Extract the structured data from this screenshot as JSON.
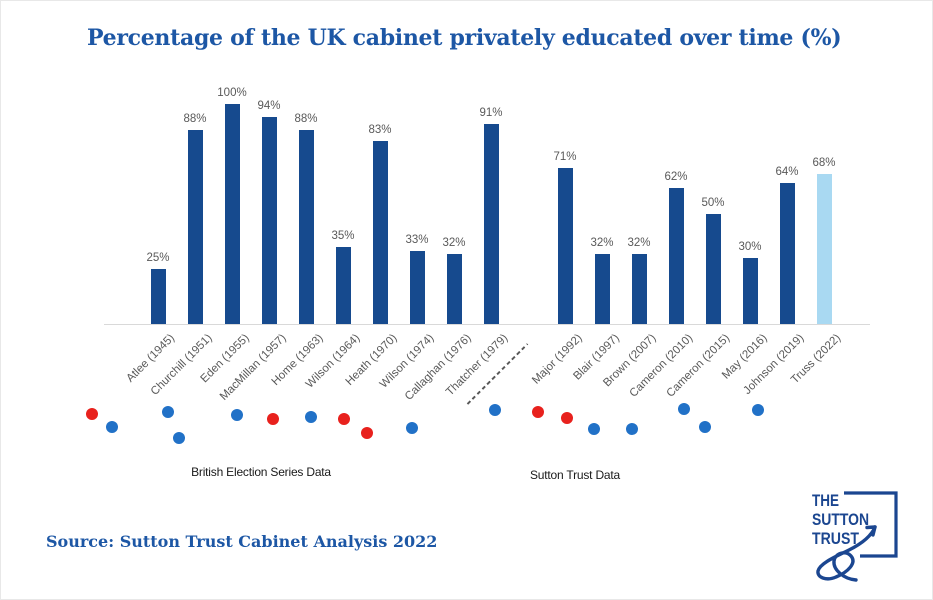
{
  "header": {
    "title": "Percentage of the UK cabinet privately educated over time (%)"
  },
  "chart_data": {
    "type": "bar",
    "title": "Percentage of the UK cabinet privately educated over time (%)",
    "ylabel": "",
    "xlabel": "",
    "ylim": [
      0,
      100
    ],
    "unit": "%",
    "grid": false,
    "legend": false,
    "categories": [
      "Atlee (1945)",
      "Churchill (1951)",
      "Eden (1955)",
      "MacMillan (1957)",
      "Home (1963)",
      "Wilson (1964)",
      "Heath (1970)",
      "Wilson (1974)",
      "Callaghan (1976)",
      "Thatcher (1979)",
      "Major (1992)",
      "Blair (1997)",
      "Brown (2007)",
      "Cameron (2010)",
      "Cameron (2015)",
      "May (2016)",
      "Johnson (2019)",
      "Truss (2022)"
    ],
    "values": [
      25,
      88,
      100,
      94,
      88,
      35,
      83,
      33,
      32,
      91,
      71,
      32,
      32,
      62,
      50,
      30,
      64,
      68
    ],
    "value_labels": [
      "25%",
      "88%",
      "100%",
      "94%",
      "88%",
      "35%",
      "83%",
      "33%",
      "32%",
      "91%",
      "71%",
      "32%",
      "32%",
      "62%",
      "50%",
      "30%",
      "64%",
      "68%"
    ],
    "party_per_bar": [
      "labour",
      "conservative",
      "conservative",
      "conservative",
      "conservative",
      "labour",
      "conservative",
      "labour",
      "labour",
      "conservative",
      "conservative",
      "labour",
      "labour",
      "conservative",
      "conservative",
      "conservative",
      "conservative",
      "conservative"
    ],
    "highlighted_index": 17,
    "groups": [
      {
        "label": "British Election Series Data",
        "category_range": [
          0,
          9
        ]
      },
      {
        "label": "Sutton Trust Data",
        "category_range": [
          10,
          17
        ]
      }
    ],
    "colors": {
      "bar": "#164a8e",
      "bar_highlight": "#a9d9f2",
      "labour_dot": "#e8211d",
      "conservative_dot": "#2171c7",
      "label_text": "#595959",
      "title_text": "#1d57a5",
      "axis_line": "#d9d9d9"
    }
  },
  "footer": {
    "source": "Source: Sutton Trust Cabinet Analysis 2022"
  },
  "logo": {
    "lines": [
      "THE",
      "SUTTON",
      "TRUST"
    ],
    "color": "#1b4690"
  }
}
